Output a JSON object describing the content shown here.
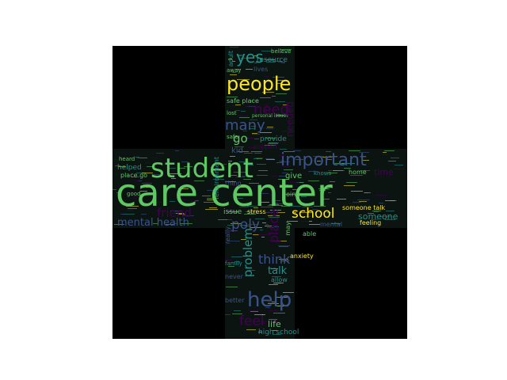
{
  "wordcloud": {
    "background": "#000000",
    "palette": [
      "#440154",
      "#3b528b",
      "#21918c",
      "#5ec962",
      "#fde725"
    ],
    "words": {
      "care_center": "care center",
      "student": "student",
      "important": "important",
      "help": "help",
      "people": "people",
      "need": "need",
      "many": "many",
      "yes": "yes",
      "school": "school",
      "poly": "poly",
      "friend": "friend",
      "mental_health": "mental health",
      "problem": "problem",
      "place": "place",
      "think": "think",
      "feel": "feel",
      "talk": "talk",
      "life": "life",
      "high_school": "high school",
      "go": "go",
      "provide": "provide",
      "kid": "kid",
      "support": "support",
      "safe_place": "safe place",
      "resource": "resource",
      "lives": "lives",
      "someone": "someone",
      "someone_talk": "someone talk",
      "time": "time",
      "home": "home",
      "give": "give",
      "knows": "knows",
      "issue": "issue",
      "stress": "stress",
      "able": "able",
      "mental": "mental",
      "feeling": "feeling",
      "anxiety": "anxiety",
      "allow": "allow",
      "never": "never",
      "better": "better",
      "heard": "heard",
      "helped": "helped",
      "place_go": "place go",
      "good": "good",
      "family": "family",
      "going": "going",
      "thing": "thing",
      "believe": "believe",
      "adult": "adult",
      "away": "away",
      "lost": "lost",
      "safe": "safe",
      "personal_issues": "personal issues",
      "needed": "needed",
      "may": "may",
      "really": "really",
      "environment": "environment"
    }
  }
}
